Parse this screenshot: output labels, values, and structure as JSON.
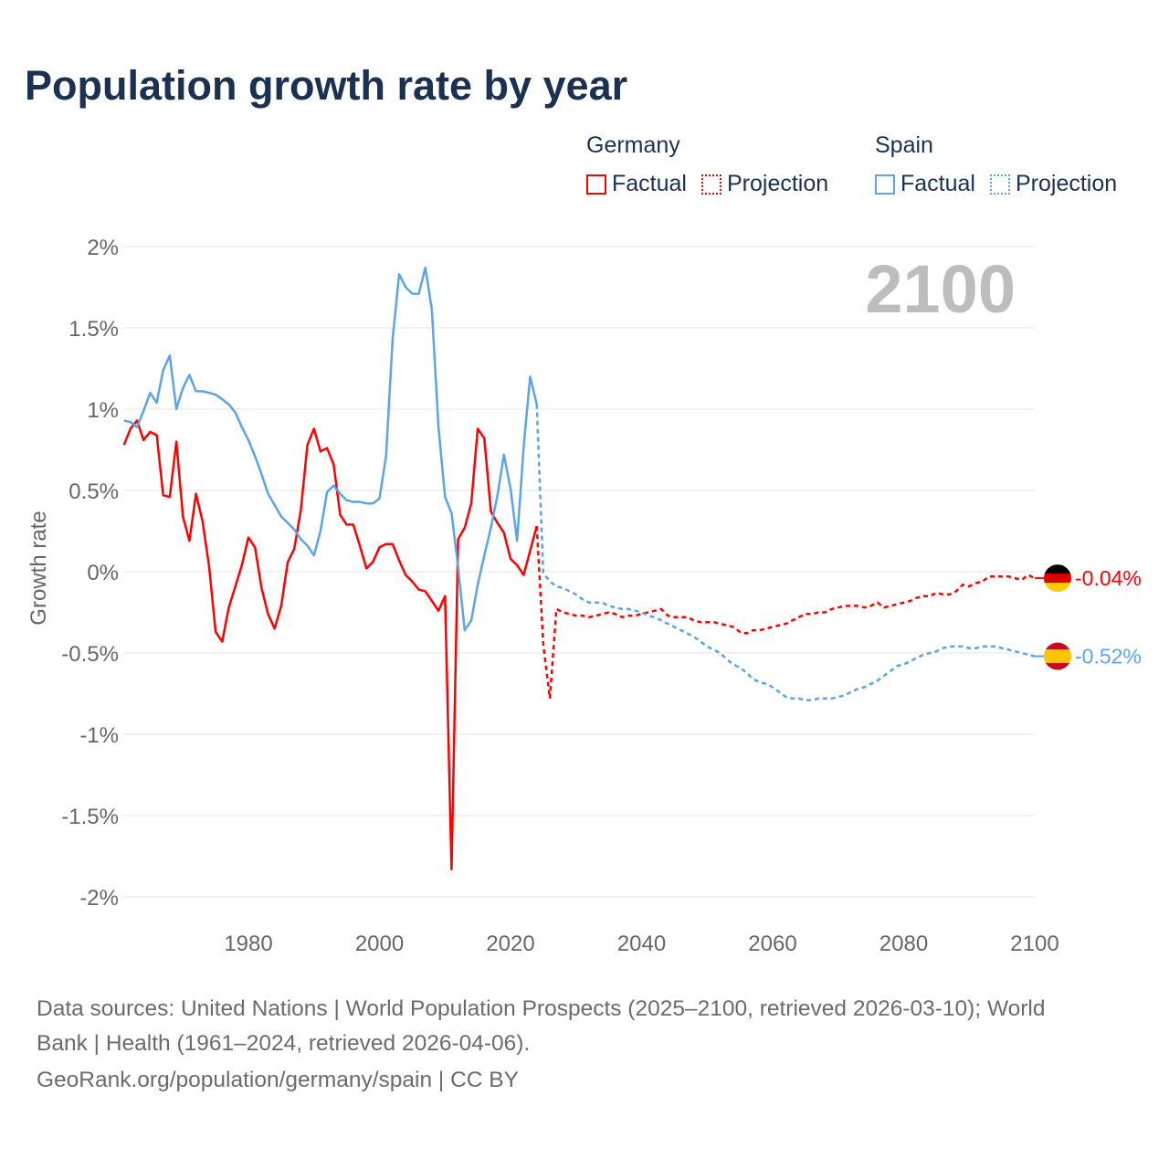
{
  "title": "Population growth rate by year",
  "legend": {
    "groups": [
      {
        "name": "Germany",
        "factual": "Factual",
        "projection": "Projection",
        "color": "#ff0000"
      },
      {
        "name": "Spain",
        "factual": "Factual",
        "projection": "Projection",
        "color": "#5ba4e8"
      }
    ]
  },
  "footer": {
    "sources_line1": "Data sources: United Nations | World Population Prospects (2025–2100, retrieved 2026-03-10); World",
    "sources_line2": "Bank | Health (1961–2024, retrieved 2026-04-06).",
    "attribution": "GeoRank.org/population/germany/spain | CC BY"
  },
  "chart_data": {
    "type": "line",
    "title": "Population growth rate by year",
    "ylabel": "Growth rate",
    "xlabel": "",
    "year_watermark": "2100",
    "xlim": [
      1961,
      2100
    ],
    "ylim": [
      -2,
      2
    ],
    "x_ticks": [
      1980,
      2000,
      2020,
      2040,
      2060,
      2080,
      2100
    ],
    "x_tick_labels": [
      "1980",
      "2000",
      "2020",
      "2040",
      "2060",
      "2080",
      "2100"
    ],
    "y_ticks": [
      2,
      1.5,
      1,
      0.5,
      0,
      -0.5,
      -1,
      -1.5,
      -2
    ],
    "y_tick_labels": [
      "2%",
      "1.5%",
      "1%",
      "0.5%",
      "0%",
      "-0.5%",
      "-1%",
      "-1.5%",
      "-2%"
    ],
    "grid": true,
    "legend_position": "top-right",
    "series": [
      {
        "name": "Germany",
        "color": "#ff0000",
        "end_label": "-0.04%",
        "flag": "germany-flag",
        "factual_start": 1961,
        "factual": [
          0.78,
          0.88,
          0.93,
          0.81,
          0.86,
          0.84,
          0.47,
          0.46,
          0.8,
          0.34,
          0.19,
          0.48,
          0.31,
          0.03,
          -0.37,
          -0.43,
          -0.22,
          -0.09,
          0.04,
          0.21,
          0.15,
          -0.1,
          -0.26,
          -0.35,
          -0.21,
          0.06,
          0.14,
          0.38,
          0.78,
          0.88,
          0.74,
          0.76,
          0.66,
          0.35,
          0.29,
          0.29,
          0.16,
          0.02,
          0.06,
          0.15,
          0.17,
          0.17,
          0.07,
          -0.02,
          -0.06,
          -0.11,
          -0.12,
          -0.18,
          -0.24,
          -0.15,
          -1.83,
          0.2,
          0.27,
          0.42,
          0.88,
          0.82,
          0.37,
          0.3,
          0.24,
          0.08,
          0.04,
          -0.02,
          0.13,
          0.28
        ],
        "projection_start": 2024,
        "projection": [
          0.28,
          -0.45,
          -0.78,
          -0.23,
          -0.25,
          -0.26,
          -0.27,
          -0.27,
          -0.28,
          -0.27,
          -0.26,
          -0.25,
          -0.26,
          -0.28,
          -0.27,
          -0.27,
          -0.26,
          -0.25,
          -0.24,
          -0.23,
          -0.27,
          -0.28,
          -0.28,
          -0.28,
          -0.3,
          -0.31,
          -0.31,
          -0.31,
          -0.32,
          -0.33,
          -0.34,
          -0.37,
          -0.38,
          -0.36,
          -0.36,
          -0.35,
          -0.34,
          -0.33,
          -0.32,
          -0.3,
          -0.28,
          -0.26,
          -0.26,
          -0.25,
          -0.25,
          -0.23,
          -0.22,
          -0.21,
          -0.21,
          -0.21,
          -0.22,
          -0.21,
          -0.19,
          -0.22,
          -0.21,
          -0.2,
          -0.19,
          -0.18,
          -0.16,
          -0.15,
          -0.15,
          -0.13,
          -0.14,
          -0.14,
          -0.12,
          -0.08,
          -0.09,
          -0.07,
          -0.06,
          -0.03,
          -0.03,
          -0.03,
          -0.03,
          -0.04,
          -0.05,
          -0.02,
          -0.04
        ]
      },
      {
        "name": "Spain",
        "color": "#5ba4e8",
        "end_label": "-0.52%",
        "flag": "spain-flag",
        "factual_start": 1961,
        "factual": [
          0.93,
          0.92,
          0.89,
          0.99,
          1.1,
          1.04,
          1.24,
          1.33,
          1.0,
          1.13,
          1.21,
          1.11,
          1.11,
          1.1,
          1.09,
          1.06,
          1.03,
          0.98,
          0.89,
          0.81,
          0.71,
          0.6,
          0.48,
          0.41,
          0.34,
          0.3,
          0.26,
          0.2,
          0.16,
          0.1,
          0.25,
          0.49,
          0.53,
          0.48,
          0.44,
          0.43,
          0.43,
          0.42,
          0.42,
          0.45,
          0.71,
          1.43,
          1.83,
          1.75,
          1.71,
          1.71,
          1.87,
          1.61,
          0.89,
          0.46,
          0.36,
          0.03,
          -0.36,
          -0.3,
          -0.08,
          0.1,
          0.27,
          0.47,
          0.72,
          0.51,
          0.19,
          0.77,
          1.2,
          1.03
        ],
        "projection_start": 2024,
        "projection": [
          1.03,
          -0.01,
          -0.06,
          -0.09,
          -0.1,
          -0.12,
          -0.14,
          -0.17,
          -0.19,
          -0.19,
          -0.19,
          -0.21,
          -0.22,
          -0.23,
          -0.23,
          -0.24,
          -0.25,
          -0.27,
          -0.28,
          -0.3,
          -0.32,
          -0.34,
          -0.36,
          -0.38,
          -0.4,
          -0.43,
          -0.46,
          -0.48,
          -0.5,
          -0.54,
          -0.57,
          -0.59,
          -0.62,
          -0.66,
          -0.68,
          -0.69,
          -0.71,
          -0.74,
          -0.77,
          -0.78,
          -0.78,
          -0.79,
          -0.79,
          -0.78,
          -0.78,
          -0.78,
          -0.77,
          -0.76,
          -0.74,
          -0.72,
          -0.71,
          -0.69,
          -0.67,
          -0.64,
          -0.61,
          -0.58,
          -0.57,
          -0.55,
          -0.53,
          -0.51,
          -0.5,
          -0.49,
          -0.47,
          -0.46,
          -0.46,
          -0.46,
          -0.47,
          -0.47,
          -0.46,
          -0.46,
          -0.46,
          -0.47,
          -0.48,
          -0.49,
          -0.5,
          -0.51,
          -0.52
        ]
      }
    ]
  }
}
